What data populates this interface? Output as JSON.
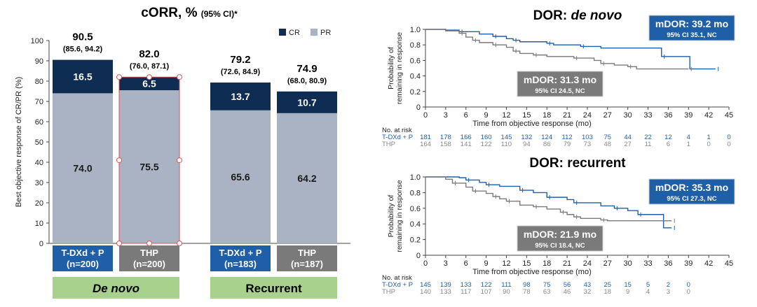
{
  "colors": {
    "cr": "#0f2d52",
    "pr": "#aab3c3",
    "tdxd": "#1f5fa8",
    "thp": "#7a7a7a",
    "banner": "#a9d18e",
    "selection": "#e05050"
  },
  "chart_data": [
    {
      "type": "bar",
      "stacked": true,
      "title": "cORR, %",
      "title_suffix": "(95% CI)*",
      "ylabel": "Best objective response of CR/PR (%)",
      "ylim": [
        0,
        100
      ],
      "yticks": [
        0,
        10,
        20,
        30,
        40,
        50,
        60,
        70,
        80,
        90,
        100
      ],
      "legend": {
        "placement": "top-right",
        "entries": [
          "CR",
          "PR"
        ]
      },
      "categories": [
        {
          "arm": "T-DXd + P",
          "n": "(n=200)",
          "total": "90.5",
          "ci": "(85.6, 94.2)",
          "cr": 16.5,
          "pr": 74.0,
          "cr_label": "16.5",
          "pr_label": "74.0",
          "color": "tdxd"
        },
        {
          "arm": "THP",
          "n": "(n=200)",
          "total": "82.0",
          "ci": "(76.0, 87.1)",
          "cr": 6.5,
          "pr": 75.5,
          "cr_label": "6.5",
          "pr_label": "75.5",
          "color": "thp"
        },
        {
          "arm": "T-DXd + P",
          "n": "(n=183)",
          "total": "79.2",
          "ci": "(72.6, 84.9)",
          "cr": 13.7,
          "pr": 65.6,
          "cr_label": "13.7",
          "pr_label": "65.6",
          "color": "tdxd"
        },
        {
          "arm": "THP",
          "n": "(n=187)",
          "total": "74.9",
          "ci": "(68.0, 80.9)",
          "cr": 10.7,
          "pr": 64.2,
          "cr_label": "10.7",
          "pr_label": "64.2",
          "color": "thp"
        }
      ],
      "groups": [
        "De novo",
        "Recurrent"
      ]
    },
    {
      "type": "line",
      "title": "DOR: ",
      "title_italic": "de novo",
      "xlabel": "Time from objective response (mo)",
      "ylabel": [
        "Probability of",
        "remaining in response"
      ],
      "xlim": [
        0,
        45
      ],
      "ylim": [
        0,
        1
      ],
      "xticks": [
        "0",
        "3",
        "6",
        "9",
        "12",
        "15",
        "18",
        "21",
        "24",
        "27",
        "30",
        "33",
        "36",
        "39",
        "42",
        "45"
      ],
      "yticks": [
        "0",
        "0.2",
        "0.4",
        "0.6",
        "0.8",
        "1.0"
      ],
      "series": [
        {
          "name": "T-DXd + P",
          "color": "tdxd",
          "median": "mDOR: 39.2 mo",
          "ci": "95% CI 35.1, NC",
          "points": [
            [
              0,
              1
            ],
            [
              3,
              0.99
            ],
            [
              5,
              0.97
            ],
            [
              8,
              0.94
            ],
            [
              10,
              0.91
            ],
            [
              12,
              0.88
            ],
            [
              13,
              0.86
            ],
            [
              14,
              0.84
            ],
            [
              18,
              0.82
            ],
            [
              19,
              0.8
            ],
            [
              23,
              0.78
            ],
            [
              26,
              0.76
            ],
            [
              35,
              0.65
            ],
            [
              39.2,
              0.49
            ],
            [
              43,
              0.49
            ]
          ],
          "at_risk": [
            "181",
            "178",
            "166",
            "160",
            "145",
            "132",
            "124",
            "112",
            "103",
            "75",
            "44",
            "22",
            "12",
            "4",
            "1",
            "0"
          ]
        },
        {
          "name": "THP",
          "color": "thp",
          "median": "mDOR: 31.3 mo",
          "ci": "95% CI 24.5, NC",
          "points": [
            [
              0,
              1
            ],
            [
              3,
              0.98
            ],
            [
              5,
              0.95
            ],
            [
              6,
              0.9
            ],
            [
              7,
              0.86
            ],
            [
              8,
              0.83
            ],
            [
              10,
              0.8
            ],
            [
              12,
              0.77
            ],
            [
              13,
              0.72
            ],
            [
              14,
              0.69
            ],
            [
              16,
              0.67
            ],
            [
              18,
              0.65
            ],
            [
              22,
              0.63
            ],
            [
              25,
              0.6
            ],
            [
              26,
              0.56
            ],
            [
              28,
              0.54
            ],
            [
              30,
              0.52
            ],
            [
              31.3,
              0.49
            ],
            [
              39,
              0.49
            ]
          ],
          "at_risk": [
            "164",
            "158",
            "141",
            "122",
            "110",
            "94",
            "86",
            "79",
            "73",
            "48",
            "27",
            "11",
            "6",
            "1",
            "0",
            "0"
          ]
        }
      ],
      "at_risk_label": "No. at risk"
    },
    {
      "type": "line",
      "title": "DOR: recurrent",
      "xlabel": "Time from objective response (mo)",
      "ylabel": [
        "Probability of",
        "remaining in response"
      ],
      "xlim": [
        0,
        45
      ],
      "ylim": [
        0,
        1
      ],
      "xticks": [
        "0",
        "3",
        "6",
        "9",
        "12",
        "15",
        "18",
        "21",
        "24",
        "27",
        "30",
        "33",
        "36",
        "39",
        "42",
        "45"
      ],
      "yticks": [
        "0",
        "0.2",
        "0.4",
        "0.6",
        "0.8",
        "1.0"
      ],
      "series": [
        {
          "name": "T-DXd + P",
          "color": "tdxd",
          "median": "mDOR: 35.3 mo",
          "ci": "95% CI 27.3, NC",
          "points": [
            [
              0,
              1
            ],
            [
              5,
              0.99
            ],
            [
              6,
              0.96
            ],
            [
              8,
              0.93
            ],
            [
              9,
              0.9
            ],
            [
              11,
              0.88
            ],
            [
              14,
              0.83
            ],
            [
              16,
              0.8
            ],
            [
              18,
              0.74
            ],
            [
              21,
              0.71
            ],
            [
              22,
              0.67
            ],
            [
              26,
              0.63
            ],
            [
              28,
              0.6
            ],
            [
              30,
              0.57
            ],
            [
              31.5,
              0.52
            ],
            [
              35.3,
              0.35
            ],
            [
              36.5,
              0.35
            ]
          ],
          "at_risk": [
            "145",
            "139",
            "133",
            "122",
            "111",
            "98",
            "75",
            "56",
            "43",
            "25",
            "15",
            "5",
            "2",
            "0"
          ]
        },
        {
          "name": "THP",
          "color": "thp",
          "median": "mDOR: 21.9 mo",
          "ci": "95% CI 18.4, NC",
          "points": [
            [
              0,
              1
            ],
            [
              3,
              0.97
            ],
            [
              4,
              0.92
            ],
            [
              6,
              0.87
            ],
            [
              7,
              0.82
            ],
            [
              9,
              0.79
            ],
            [
              10,
              0.75
            ],
            [
              11,
              0.72
            ],
            [
              12,
              0.69
            ],
            [
              14,
              0.64
            ],
            [
              16,
              0.62
            ],
            [
              18,
              0.59
            ],
            [
              20,
              0.55
            ],
            [
              21,
              0.52
            ],
            [
              22,
              0.49
            ],
            [
              23,
              0.47
            ],
            [
              26,
              0.45
            ],
            [
              27,
              0.44
            ],
            [
              36.5,
              0.44
            ]
          ],
          "at_risk": [
            "140",
            "133",
            "117",
            "107",
            "90",
            "78",
            "63",
            "46",
            "32",
            "18",
            "9",
            "4",
            "3",
            "0"
          ]
        }
      ],
      "at_risk_label": "No. at risk"
    }
  ]
}
